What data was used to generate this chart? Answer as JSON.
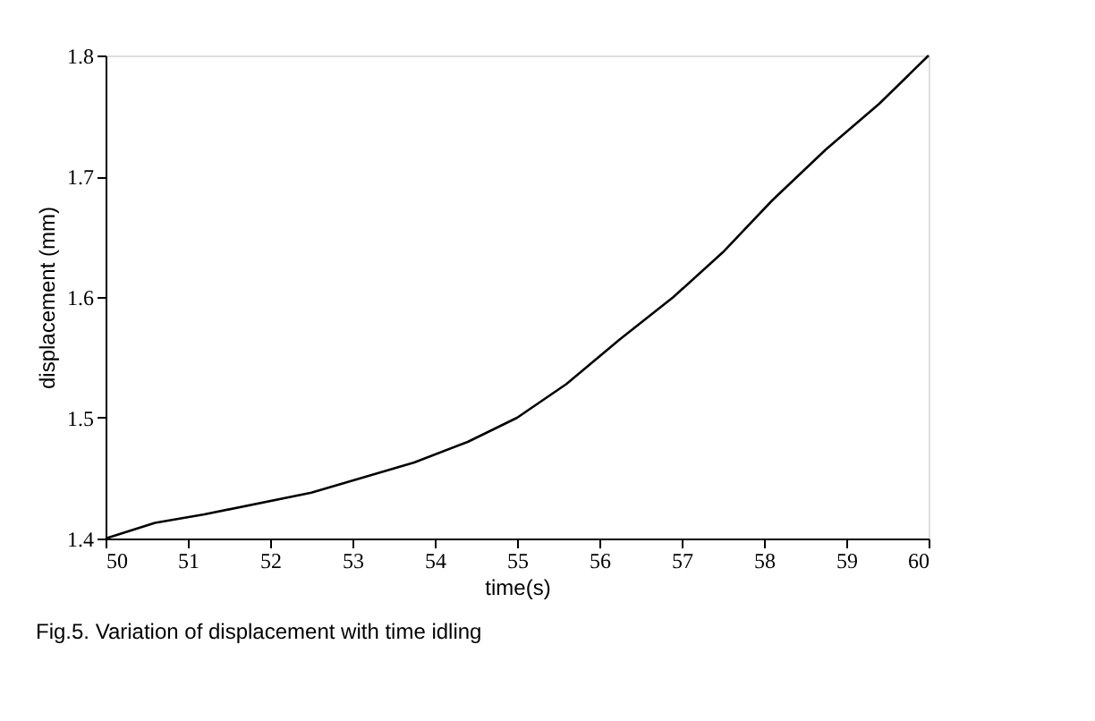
{
  "chart_data": {
    "type": "line",
    "xlabel": "time(s)",
    "ylabel": "displacement  (mm)",
    "x": [
      50,
      50.6,
      51.2,
      52.5,
      53.75,
      54.4,
      55,
      55.6,
      56.25,
      56.9,
      57.5,
      58.1,
      58.75,
      59.4,
      60
    ],
    "series": [
      {
        "color": "#000000",
        "values": [
          1.4,
          1.413,
          1.42,
          1.438,
          1.463,
          1.48,
          1.5,
          1.528,
          1.565,
          1.6,
          1.637,
          1.68,
          1.722,
          1.76,
          1.8
        ]
      }
    ],
    "xlim": [
      50,
      60
    ],
    "xticks": [
      50,
      51,
      52,
      53,
      54,
      55,
      56,
      57,
      58,
      59,
      60
    ],
    "ylim": [
      1.4,
      1.8
    ],
    "yticks": [
      1.4,
      1.5,
      1.6,
      1.7,
      1.8
    ],
    "grid": false,
    "legend": false,
    "marker": "none",
    "line_style": "solid",
    "annotations": [
      "Fig.5. Variation of displacement with time idling"
    ]
  }
}
